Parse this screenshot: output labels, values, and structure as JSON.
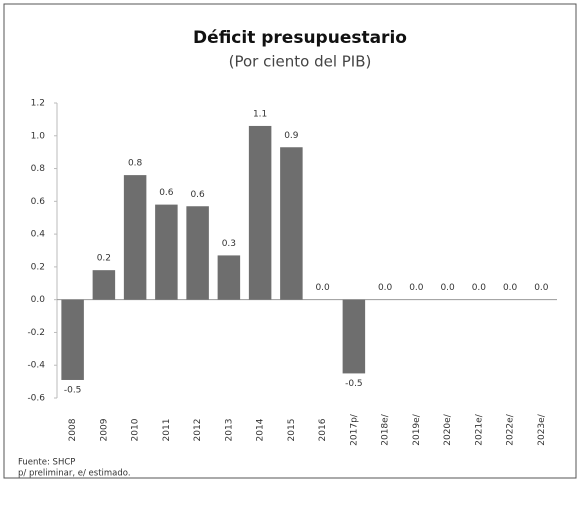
{
  "chart_data": {
    "type": "bar",
    "title": "Déficit presupuestario",
    "subtitle": "(Por ciento del PIB)",
    "categories": [
      "2008",
      "2009",
      "2010",
      "2011",
      "2012",
      "2013",
      "2014",
      "2015",
      "2016",
      "2017p/",
      "2018e/",
      "2019e/",
      "2020e/",
      "2021e/",
      "2022e/",
      "2023e/"
    ],
    "values": [
      -0.49,
      0.18,
      0.76,
      0.58,
      0.57,
      0.27,
      1.06,
      0.93,
      0,
      -0.45,
      0,
      0,
      0,
      0,
      0,
      0
    ],
    "value_labels": [
      "-0.5",
      "0.2",
      "0.8",
      "0.6",
      "0.6",
      "0.3",
      "1.1",
      "0.9",
      "0.0",
      "-0.5",
      "0.0",
      "0.0",
      "0.0",
      "0.0",
      "0.0",
      "0.0"
    ],
    "color": "#6e6e6e",
    "ylim": [
      -0.6,
      1.2
    ],
    "yticks": [
      -0.6,
      -0.4,
      -0.2,
      {
        "value": 0,
        "label": "0.0"
      },
      0.2,
      0.4,
      0.6,
      0.8,
      {
        "value": 1,
        "label": "1.0"
      },
      1.2
    ],
    "grid": false,
    "notes": [
      "Fuente: SHCP",
      "p/ preliminar, e/ estimado."
    ]
  }
}
